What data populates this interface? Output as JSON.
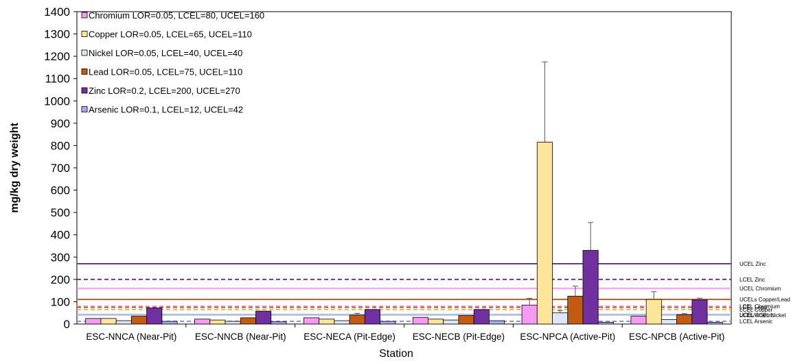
{
  "chart_data": {
    "type": "bar",
    "title": "",
    "xlabel": "Station",
    "ylabel": "mg/kg dry weight",
    "ylim": [
      0,
      1400
    ],
    "yticks": [
      0,
      100,
      200,
      300,
      400,
      500,
      600,
      700,
      800,
      900,
      1000,
      1100,
      1200,
      1300,
      1400
    ],
    "legend_position": "top-left",
    "categories": [
      "ESC-NNCA (Near-Pit)",
      "ESC-NNCB (Near-Pit)",
      "ESC-NECA (Pit-Edge)",
      "ESC-NECB (Pit-Edge)",
      "ESC-NPCA (Active-Pit)",
      "ESC-NPCB (Active-Pit)"
    ],
    "series": [
      {
        "name": "Chromium LOR=0.05, LCEL=80, UCEL=160",
        "color": "#f59bf0",
        "values": [
          25,
          22,
          28,
          30,
          85,
          35
        ],
        "errors": [
          0,
          0,
          0,
          0,
          30,
          0
        ]
      },
      {
        "name": "Copper LOR=0.05, LCEL=65, UCEL=110",
        "color": "#ffe59a",
        "values": [
          25,
          18,
          22,
          22,
          815,
          110
        ],
        "errors": [
          0,
          0,
          0,
          0,
          360,
          35
        ]
      },
      {
        "name": "Nickel LOR=0.05, LCEL=40, UCEL=40",
        "color": "#dde6f4",
        "values": [
          15,
          12,
          15,
          18,
          50,
          20
        ],
        "errors": [
          0,
          0,
          0,
          0,
          10,
          0
        ]
      },
      {
        "name": "Lead LOR=0.05, LCEL=75, UCEL=110",
        "color": "#c55a11",
        "values": [
          35,
          28,
          40,
          38,
          125,
          42
        ],
        "errors": [
          0,
          0,
          8,
          0,
          45,
          5
        ]
      },
      {
        "name": "Zinc LOR=0.2, LCEL=200, UCEL=270",
        "color": "#7030a0",
        "values": [
          72,
          58,
          65,
          65,
          330,
          108
        ],
        "errors": [
          0,
          0,
          0,
          0,
          125,
          8
        ]
      },
      {
        "name": "Arsenic LOR=0.1, LCEL=12, UCEL=42",
        "color": "#a9a9ee",
        "values": [
          12,
          10,
          12,
          15,
          8,
          8
        ],
        "errors": [
          0,
          0,
          0,
          0,
          0,
          0
        ]
      }
    ],
    "reference_lines": [
      {
        "label": "UCEL Zinc",
        "value": 270,
        "color": "#7030a0",
        "style": "solid"
      },
      {
        "label": "LCEL Zinc",
        "value": 200,
        "color": "#7030a0",
        "style": "dashed"
      },
      {
        "label": "UCEL Chromium",
        "value": 160,
        "color": "#f59bf0",
        "style": "solid"
      },
      {
        "label": "UCELs Copper/Lead",
        "value": 110,
        "color": "#c55a11",
        "style": "solid"
      },
      {
        "label": "LCEL Chromium",
        "value": 80,
        "color": "#f59bf0",
        "style": "dashed"
      },
      {
        "label": "LCEL Lead",
        "value": 75,
        "color": "#c55a11",
        "style": "dashed"
      },
      {
        "label": "LCEL Copper",
        "value": 65,
        "color": "#ffc000",
        "style": "dashed"
      },
      {
        "label": "UCEL Arsenic",
        "value": 42,
        "color": "#8888dd",
        "style": "solid"
      },
      {
        "label": "LCEL/UCEL Nickel",
        "value": 40,
        "color": "#b4c7e7",
        "style": "solid"
      },
      {
        "label": "LCEL Arsenic",
        "value": 12,
        "color": "#8888dd",
        "style": "dashed"
      }
    ]
  }
}
